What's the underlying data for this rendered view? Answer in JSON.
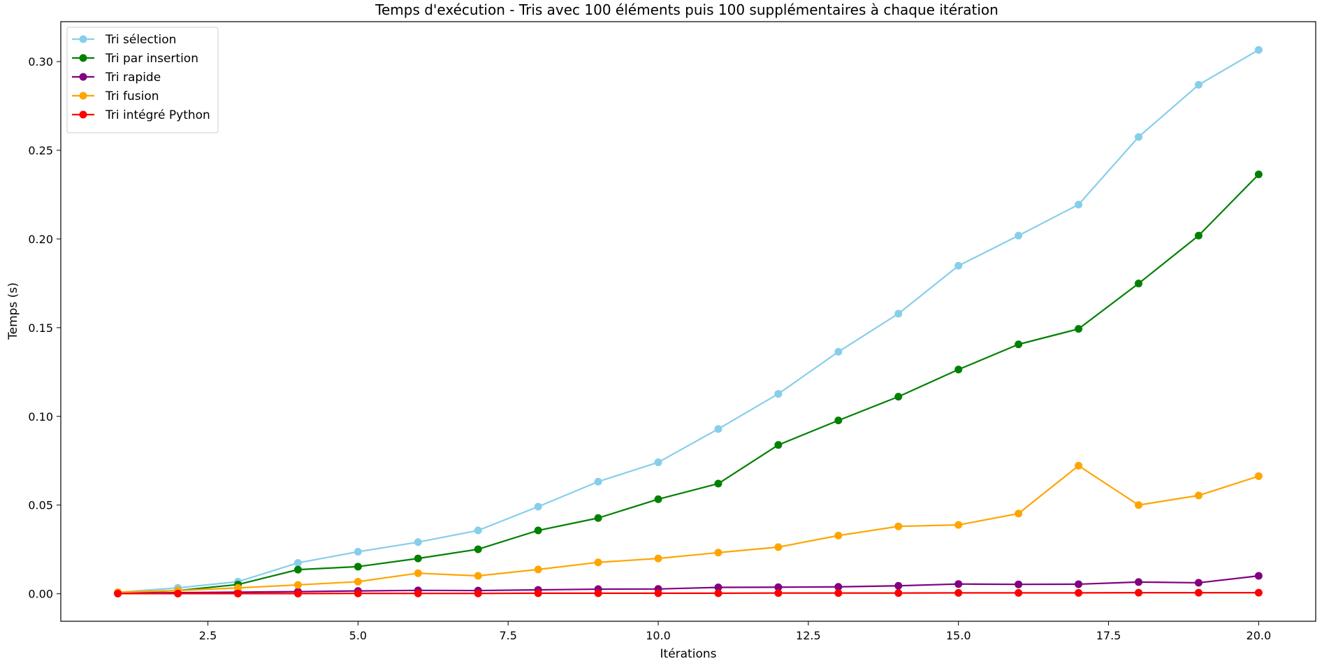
{
  "chart_data": {
    "type": "line",
    "title": "Temps d'exécution - Tris avec 100 éléments puis 100 supplémentaires à chaque itération",
    "xlabel": "Itérations",
    "ylabel": "Temps (s)",
    "xlim": [
      0.05,
      20.95
    ],
    "ylim": [
      -0.0155,
      0.3225
    ],
    "x_ticks": [
      2.5,
      5.0,
      7.5,
      10.0,
      12.5,
      15.0,
      17.5,
      20.0
    ],
    "x_tick_labels": [
      "2.5",
      "5.0",
      "7.5",
      "10.0",
      "12.5",
      "15.0",
      "17.5",
      "20.0"
    ],
    "y_ticks": [
      0.0,
      0.05,
      0.1,
      0.15,
      0.2,
      0.25,
      0.3
    ],
    "y_tick_labels": [
      "0.00",
      "0.05",
      "0.10",
      "0.15",
      "0.20",
      "0.25",
      "0.30"
    ],
    "grid": false,
    "legend_position": "top-left",
    "x": [
      1,
      2,
      3,
      4,
      5,
      6,
      7,
      8,
      9,
      10,
      11,
      12,
      13,
      14,
      15,
      16,
      17,
      18,
      19,
      20
    ],
    "series": [
      {
        "name": "Tri sélection",
        "color": "#87ceeb",
        "values": [
          0.0008,
          0.0033,
          0.0068,
          0.0174,
          0.0237,
          0.0291,
          0.0357,
          0.0491,
          0.0632,
          0.0741,
          0.0929,
          0.1127,
          0.1364,
          0.1579,
          0.1849,
          0.2019,
          0.2194,
          0.2575,
          0.2869,
          0.3066
        ]
      },
      {
        "name": "Tri par insertion",
        "color": "#008000",
        "values": [
          0.0005,
          0.0018,
          0.0052,
          0.0136,
          0.0153,
          0.0199,
          0.0251,
          0.0357,
          0.0427,
          0.0533,
          0.0621,
          0.0839,
          0.0977,
          0.1111,
          0.1264,
          0.1406,
          0.1493,
          0.1749,
          0.2019,
          0.2364
        ]
      },
      {
        "name": "Tri rapide",
        "color": "#800080",
        "values": [
          0.0003,
          0.0006,
          0.0009,
          0.0012,
          0.0016,
          0.0019,
          0.0018,
          0.0022,
          0.0026,
          0.0027,
          0.0036,
          0.0037,
          0.0039,
          0.0045,
          0.0055,
          0.0053,
          0.0054,
          0.0066,
          0.0062,
          0.0101
        ]
      },
      {
        "name": "Tri fusion",
        "color": "#ffa500",
        "values": [
          0.0009,
          0.0018,
          0.0033,
          0.005,
          0.0068,
          0.0116,
          0.0101,
          0.0137,
          0.0177,
          0.0199,
          0.0232,
          0.0263,
          0.0328,
          0.038,
          0.0388,
          0.0452,
          0.0722,
          0.05,
          0.0554,
          0.0663
        ]
      },
      {
        "name": "Tri intégré Python",
        "color": "#ff0000",
        "values": [
          0.0001,
          0.0001,
          0.0001,
          0.0001,
          0.0002,
          0.0002,
          0.0002,
          0.0003,
          0.0003,
          0.0003,
          0.0003,
          0.0004,
          0.0004,
          0.0004,
          0.0005,
          0.0005,
          0.0005,
          0.0006,
          0.0006,
          0.0006
        ]
      }
    ]
  }
}
